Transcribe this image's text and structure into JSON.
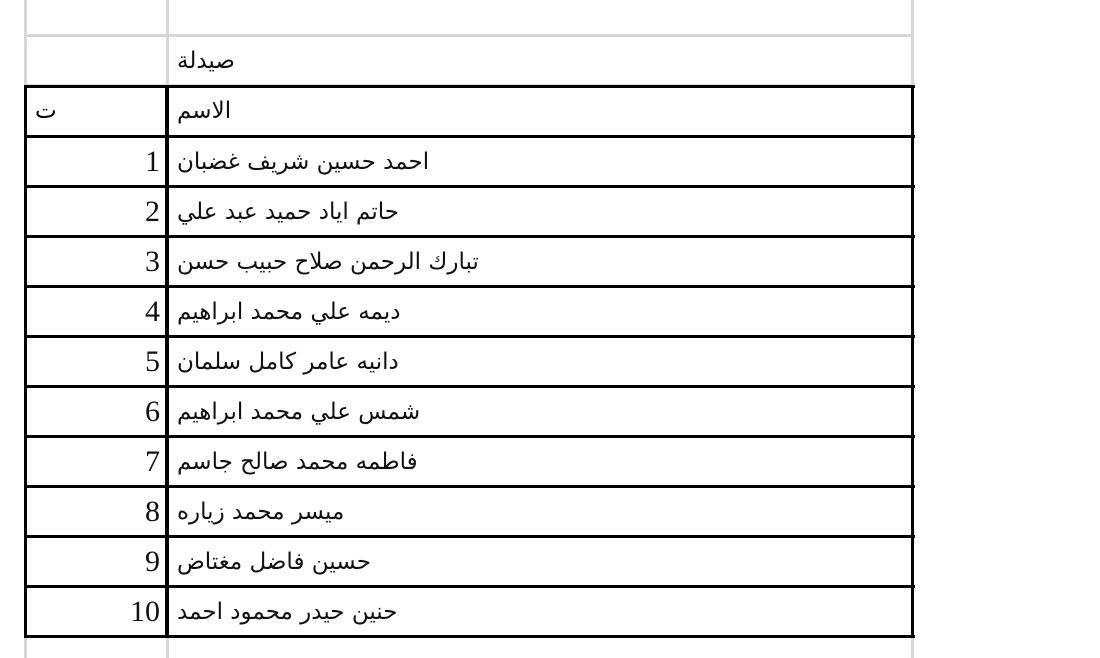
{
  "sheet": {
    "title_cell": "صيدلة",
    "header": {
      "index": "ت",
      "name": "الاسم"
    },
    "rows": [
      {
        "index": "1",
        "name": "احمد حسين شريف غضبان"
      },
      {
        "index": "2",
        "name": "حاتم اياد حميد عبد علي"
      },
      {
        "index": "3",
        "name": "تبارك الرحمن صلاح حبيب حسن"
      },
      {
        "index": "4",
        "name": "ديمه علي محمد ابراهيم"
      },
      {
        "index": "5",
        "name": "دانيه عامر كامل سلمان"
      },
      {
        "index": "6",
        "name": "شمس علي محمد ابراهيم"
      },
      {
        "index": "7",
        "name": "فاطمه محمد صالح جاسم"
      },
      {
        "index": "8",
        "name": "ميسر محمد زياره"
      },
      {
        "index": "9",
        "name": "حسين فاضل مغتاض"
      },
      {
        "index": "10",
        "name": "حنين حيدر محمود احمد"
      }
    ]
  },
  "colors": {
    "gridline": "#d6d6de",
    "border": "#000000"
  }
}
